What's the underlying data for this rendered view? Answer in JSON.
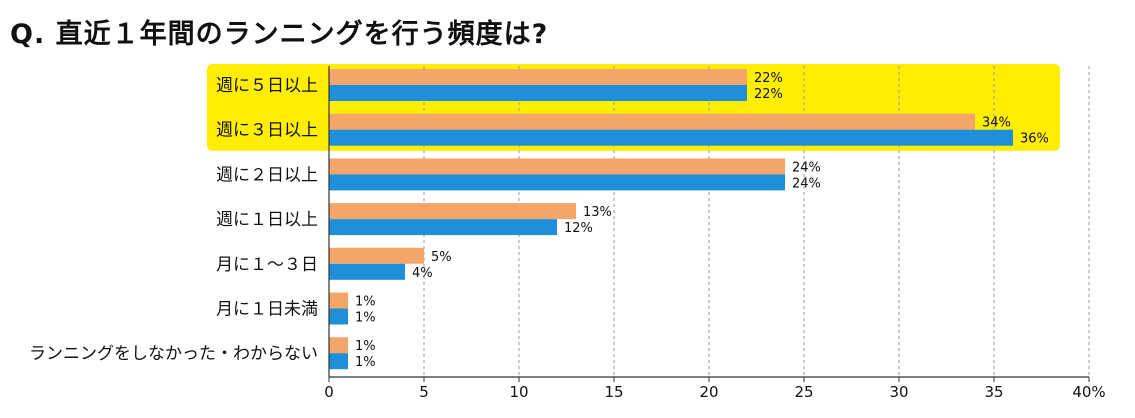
{
  "chart_data": {
    "type": "bar",
    "orientation": "horizontal",
    "title": "Q.  直近１年間のランニングを行う頻度は?",
    "categories": [
      "週に５日以上",
      "週に３日以上",
      "週に２日以上",
      "週に１日以上",
      "月に１〜３日",
      "月に１日未満",
      "ランニングをしなかった・わからない"
    ],
    "series": [
      {
        "color": "#f4a66a",
        "values": [
          22,
          34,
          24,
          13,
          5,
          1,
          1
        ],
        "labels": [
          "22%",
          "34%",
          "24%",
          "13%",
          "5%",
          "1%",
          "1%"
        ]
      },
      {
        "color": "#1e8fd8",
        "values": [
          22,
          36,
          24,
          12,
          4,
          1,
          1
        ],
        "labels": [
          "22%",
          "36%",
          "24%",
          "12%",
          "4%",
          "1%",
          "1%"
        ]
      }
    ],
    "xlim": [
      0,
      40
    ],
    "xticks": [
      "0",
      "5",
      "10",
      "15",
      "20",
      "25",
      "30",
      "35",
      "40%"
    ],
    "grid": "vertical dashed",
    "highlight": {
      "categories": [
        0,
        1
      ],
      "color": "#ffee00"
    }
  }
}
